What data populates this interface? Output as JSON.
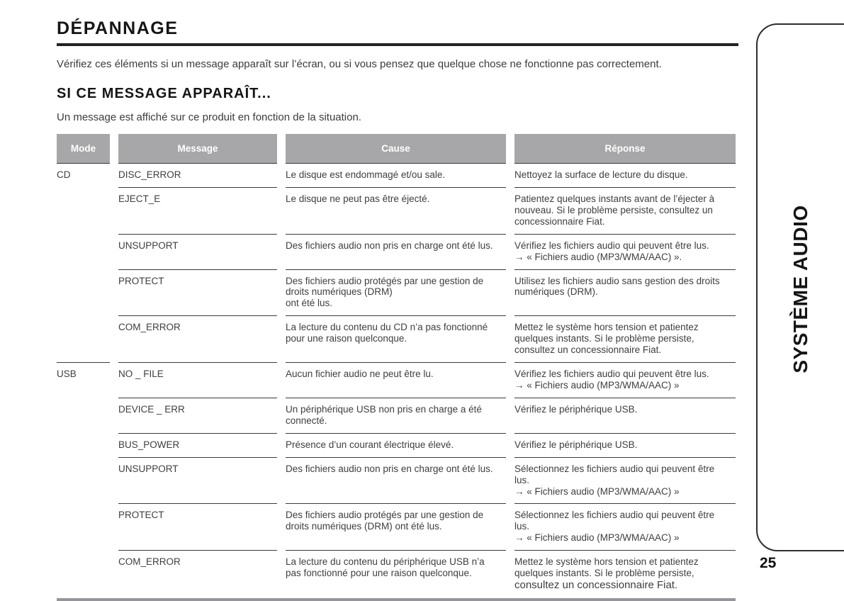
{
  "page": {
    "title": "DÉPANNAGE",
    "intro": "Vérifiez ces éléments si un message apparaît sur l’écran, ou si vous pensez que quelque chose ne fonctionne pas correctement.",
    "section_heading": "SI CE MESSAGE APPARAÎT...",
    "section_intro": "Un message est affiché sur ce produit en fonction de la situation.",
    "sidebar_label": "SYSTÈME AUDIO",
    "page_number": "25"
  },
  "table": {
    "headers": [
      "Mode",
      "Message",
      "Cause",
      "Réponse"
    ],
    "rows": [
      {
        "mode": "CD",
        "section_start": true,
        "message": "DISC_ERROR",
        "cause": "Le disque est endommagé et/ou sale.",
        "response": "Nettoyez la surface de lecture du disque."
      },
      {
        "mode": "",
        "section_start": false,
        "message": "EJECT_E",
        "cause": "Le disque ne peut pas être éjecté.",
        "response": "Patientez quelques instants avant de l’éjecter à nouveau. Si le problème persiste, consultez un concessionnaire Fiat."
      },
      {
        "mode": "",
        "section_start": false,
        "message": "UNSUPPORT",
        "cause": "Des fichiers audio non pris en charge ont été lus.",
        "response": "Vérifiez les fichiers audio qui peuvent être lus.\n→ « Fichiers audio (MP3/WMA/AAC) »."
      },
      {
        "mode": "",
        "section_start": false,
        "message": "PROTECT",
        "cause": "Des fichiers audio protégés par une gestion de droits numériques (DRM)\n ont été lus.",
        "response": "Utilisez les fichiers audio sans gestion des droits numériques (DRM)."
      },
      {
        "mode": "",
        "section_start": false,
        "message": "COM_ERROR",
        "cause": "La lecture du contenu du CD n’a pas fonctionné pour une raison quelconque.",
        "response": "Mettez le système hors tension et patientez quelques instants. Si le problème persiste, consultez un concessionnaire Fiat."
      },
      {
        "mode": "USB",
        "section_start": true,
        "message": "NO _ FILE",
        "cause": "Aucun fichier audio ne peut être lu.",
        "response": "Vérifiez les fichiers audio qui peuvent être lus.\n→ « Fichiers audio (MP3/WMA/AAC) »"
      },
      {
        "mode": "",
        "section_start": false,
        "message": "DEVICE _ ERR",
        "cause": "Un périphérique USB non pris en charge a été connecté.",
        "response": "Vérifiez le périphérique USB."
      },
      {
        "mode": "",
        "section_start": false,
        "message": "BUS_POWER",
        "cause": "Présence d’un courant électrique élevé.",
        "response": "Vérifiez le périphérique USB."
      },
      {
        "mode": "",
        "section_start": false,
        "message": "UNSUPPORT",
        "cause": "Des fichiers audio non pris en charge ont été lus.",
        "response": "Sélectionnez les fichiers audio qui peuvent être lus.\n→ « Fichiers audio (MP3/WMA/AAC) »"
      },
      {
        "mode": "",
        "section_start": false,
        "message": "PROTECT",
        "cause": "Des fichiers audio protégés par une gestion de droits numériques (DRM) ont été lus.",
        "response": "Sélectionnez les fichiers audio qui peuvent être lus.\n→ « Fichiers audio (MP3/WMA/AAC) »"
      },
      {
        "mode": "",
        "section_start": false,
        "message": "COM_ERROR",
        "cause": "La lecture du contenu du périphérique USB n’a pas fonctionné pour une raison quelconque.",
        "response": "Mettez le système hors tension et patientez quelques instants. Si le problème persiste,",
        "response_emphasis": "consultez un concessionnaire Fiat."
      }
    ]
  },
  "colors": {
    "header_bg": "#a7a7a9",
    "header_text": "#ffffff",
    "rule_dark": "#3a3a3a",
    "rule_thick": "#96969a",
    "heading_text": "#151515",
    "body_text": "#3e3e3e"
  }
}
